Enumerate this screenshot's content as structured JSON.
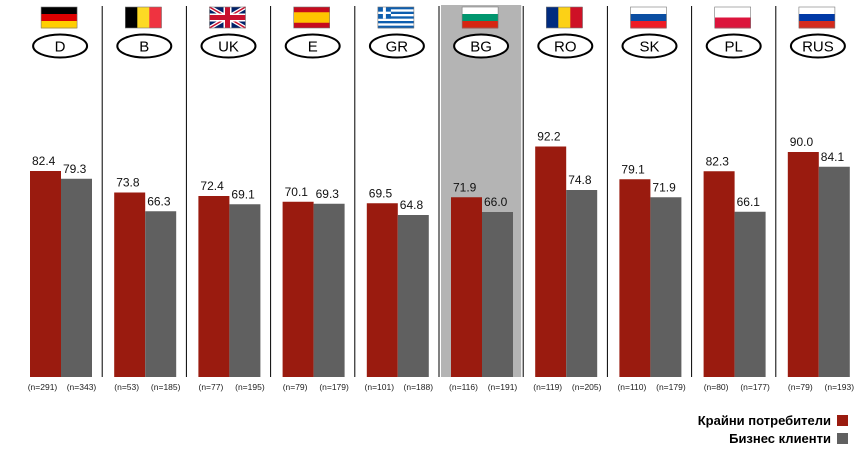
{
  "chart_data": {
    "type": "bar",
    "categories": [
      "D",
      "B",
      "UK",
      "E",
      "GR",
      "BG",
      "RO",
      "SK",
      "PL",
      "RUS"
    ],
    "highlighted_category": "BG",
    "series": [
      {
        "name": "Крайни потребители",
        "color": "#9a1b0f",
        "values": [
          82.4,
          73.8,
          72.4,
          70.1,
          69.5,
          71.9,
          92.2,
          79.1,
          82.3,
          90.0
        ],
        "value_labels": [
          "82.4",
          "73.8",
          "72.4",
          "70.1",
          "69.5",
          "71.9",
          "92.2",
          "79.1",
          "82.3",
          "90.0"
        ],
        "n_labels": [
          "(n=291)",
          "(n=53)",
          "(n=77)",
          "(n=79)",
          "(n=101)",
          "(n=116)",
          "(n=119)",
          "(n=110)",
          "(n=80)",
          "(n=79)"
        ]
      },
      {
        "name": "Бизнес клиенти",
        "color": "#606060",
        "values": [
          79.3,
          66.3,
          69.1,
          69.3,
          64.8,
          66.0,
          74.8,
          71.9,
          66.1,
          84.1
        ],
        "value_labels": [
          "79.3",
          "66.3",
          "69.1",
          "69.3",
          "64.8",
          "66.0",
          "74.8",
          "71.9",
          "66.1",
          "84.1"
        ],
        "n_labels": [
          "(n=343)",
          "(n=185)",
          "(n=195)",
          "(n=179)",
          "(n=188)",
          "(n=191)",
          "(n=205)",
          "(n=179)",
          "(n=177)",
          "(n=193)"
        ]
      }
    ],
    "ylim": [
      0,
      100
    ],
    "grid": false,
    "legend_position": "bottom-right"
  },
  "flags": [
    {
      "code": "D",
      "icon": "germany-flag-icon",
      "colors": [
        "#000000",
        "#dd0000",
        "#ffce00"
      ],
      "layout": "h"
    },
    {
      "code": "B",
      "icon": "belgium-flag-icon",
      "colors": [
        "#000000",
        "#fdda24",
        "#ef3340"
      ],
      "layout": "v"
    },
    {
      "code": "UK",
      "icon": "uk-flag-icon",
      "colors": [
        "#012169",
        "#ffffff",
        "#c8102e"
      ],
      "layout": "uk"
    },
    {
      "code": "E",
      "icon": "spain-flag-icon",
      "colors": [
        "#c60b1e",
        "#ffc400",
        "#c60b1e"
      ],
      "layout": "es"
    },
    {
      "code": "GR",
      "icon": "greece-flag-icon",
      "colors": [
        "#0d5eaf",
        "#ffffff"
      ],
      "layout": "gr"
    },
    {
      "code": "BG",
      "icon": "bulgaria-flag-icon",
      "colors": [
        "#ffffff",
        "#00966e",
        "#d62612"
      ],
      "layout": "h"
    },
    {
      "code": "RO",
      "icon": "romania-flag-icon",
      "colors": [
        "#002b7f",
        "#fcd116",
        "#ce1126"
      ],
      "layout": "v"
    },
    {
      "code": "SK",
      "icon": "slovakia-flag-icon",
      "colors": [
        "#ffffff",
        "#0b4ea2",
        "#ee1c25"
      ],
      "layout": "h"
    },
    {
      "code": "PL",
      "icon": "poland-flag-icon",
      "colors": [
        "#ffffff",
        "#dc143c"
      ],
      "layout": "h"
    },
    {
      "code": "RUS",
      "icon": "russia-flag-icon",
      "colors": [
        "#ffffff",
        "#0039a6",
        "#d52b1e"
      ],
      "layout": "h"
    }
  ],
  "legend": {
    "consumers_label": "Крайни потребители",
    "business_label": "Бизнес клиенти"
  }
}
